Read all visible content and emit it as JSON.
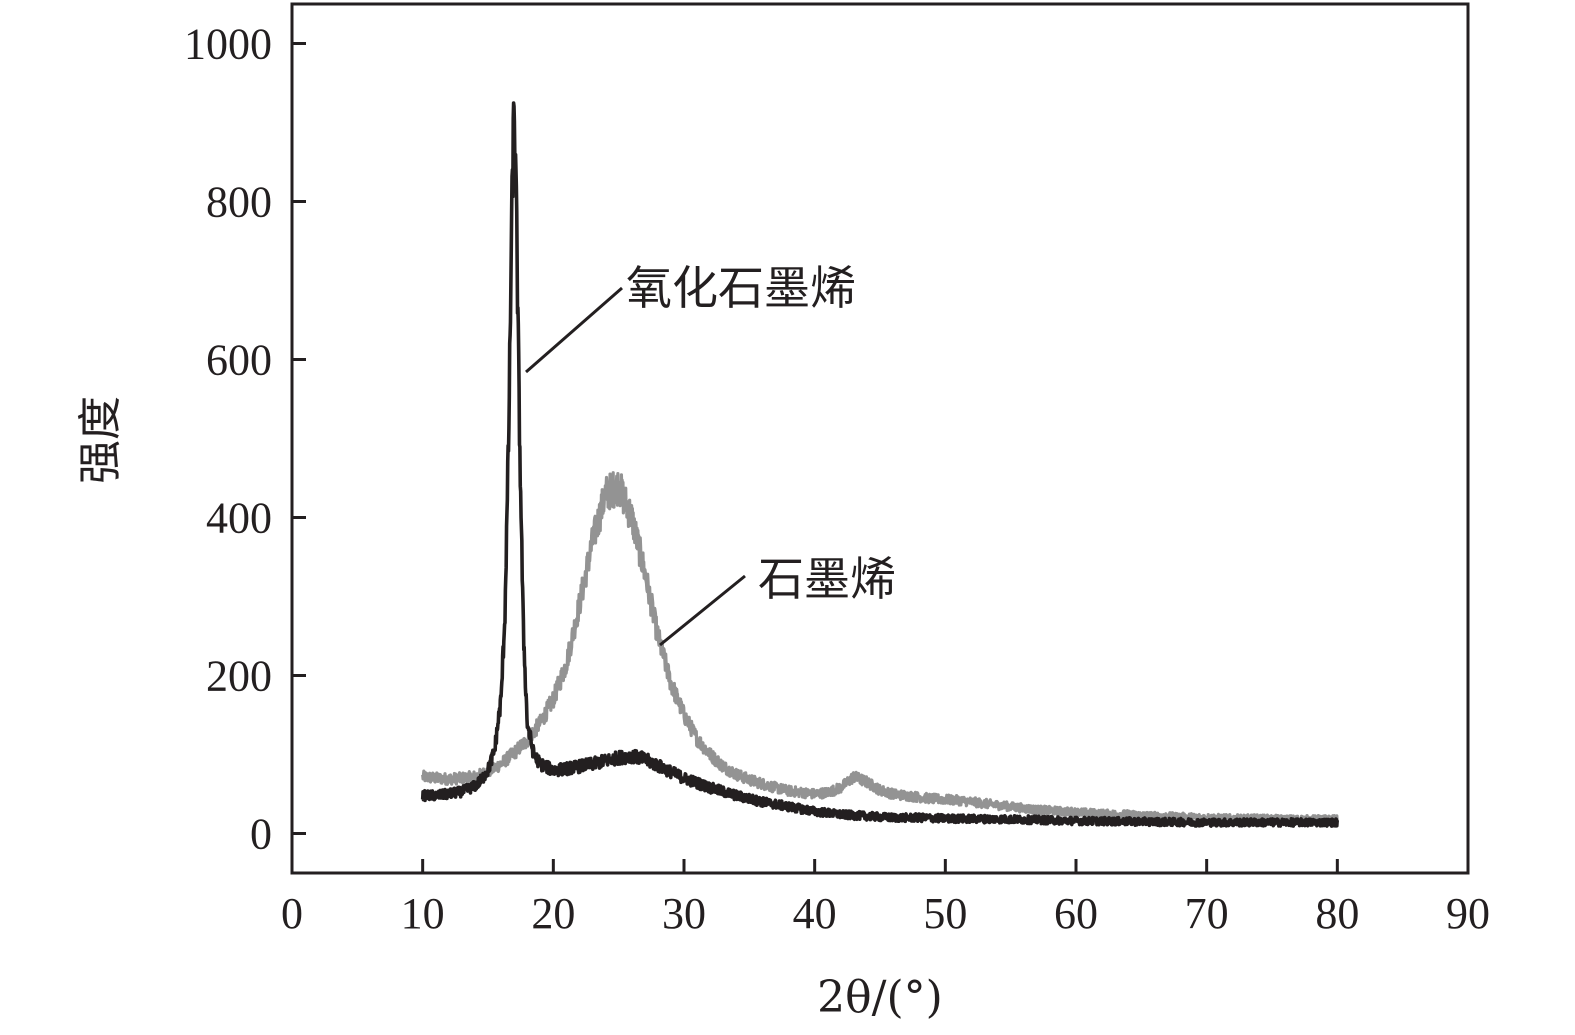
{
  "chart_data": {
    "type": "line",
    "title": "",
    "xlabel": "2θ/(°)",
    "ylabel": "强度",
    "xlim": [
      0,
      90
    ],
    "ylim": [
      -50,
      1050
    ],
    "xticks": [
      "0",
      "10",
      "20",
      "30",
      "40",
      "50",
      "60",
      "70",
      "80",
      "90"
    ],
    "yticks": [
      "0",
      "200",
      "400",
      "600",
      "800",
      "1000"
    ],
    "grid": false,
    "legend": "none",
    "series": [
      {
        "name": "石墨烯",
        "color": "#939393",
        "x": [
          10,
          11,
          12,
          13,
          14,
          15,
          16,
          17,
          18,
          19,
          20,
          21,
          22,
          23,
          24,
          25,
          26,
          27,
          28,
          29,
          30,
          31,
          32,
          33,
          34,
          35,
          36,
          37,
          38,
          39,
          40,
          41,
          42,
          43,
          44,
          45,
          46,
          47,
          48,
          49,
          50,
          51,
          52,
          53,
          54,
          55,
          56,
          57,
          58,
          59,
          60,
          62,
          64,
          66,
          68,
          70,
          72,
          74,
          76,
          78,
          80
        ],
        "y": [
          72,
          70,
          69,
          70,
          72,
          78,
          88,
          102,
          118,
          140,
          170,
          215,
          290,
          370,
          430,
          440,
          400,
          330,
          250,
          190,
          150,
          120,
          100,
          85,
          75,
          68,
          63,
          58,
          54,
          52,
          50,
          52,
          58,
          72,
          65,
          55,
          50,
          48,
          46,
          44,
          43,
          42,
          40,
          38,
          36,
          34,
          32,
          30,
          29,
          28,
          27,
          25,
          24,
          22,
          21,
          20,
          19,
          19,
          18,
          18,
          18
        ]
      },
      {
        "name": "氧化石墨烯",
        "color": "#231f20",
        "x": [
          10,
          11,
          12,
          13,
          14,
          14.5,
          15,
          15.5,
          16,
          16.3,
          16.6,
          16.8,
          17,
          17.2,
          17.4,
          17.7,
          18,
          18.5,
          19,
          20,
          21,
          22,
          23,
          24,
          25,
          26,
          27,
          28,
          29,
          30,
          32,
          34,
          36,
          38,
          40,
          42,
          44,
          46,
          48,
          50,
          55,
          60,
          65,
          70,
          75,
          80
        ],
        "y": [
          48,
          48,
          50,
          53,
          60,
          68,
          80,
          105,
          170,
          280,
          520,
          760,
          930,
          760,
          520,
          260,
          140,
          100,
          88,
          80,
          82,
          85,
          88,
          92,
          96,
          98,
          94,
          86,
          78,
          70,
          58,
          48,
          40,
          34,
          28,
          24,
          22,
          20,
          20,
          19,
          18,
          16,
          15,
          14,
          14,
          14
        ]
      }
    ],
    "annotations": [
      {
        "text": "氧化石墨烯",
        "series": "氧化石墨烯"
      },
      {
        "text": "石墨烯",
        "series": "石墨烯"
      }
    ]
  }
}
